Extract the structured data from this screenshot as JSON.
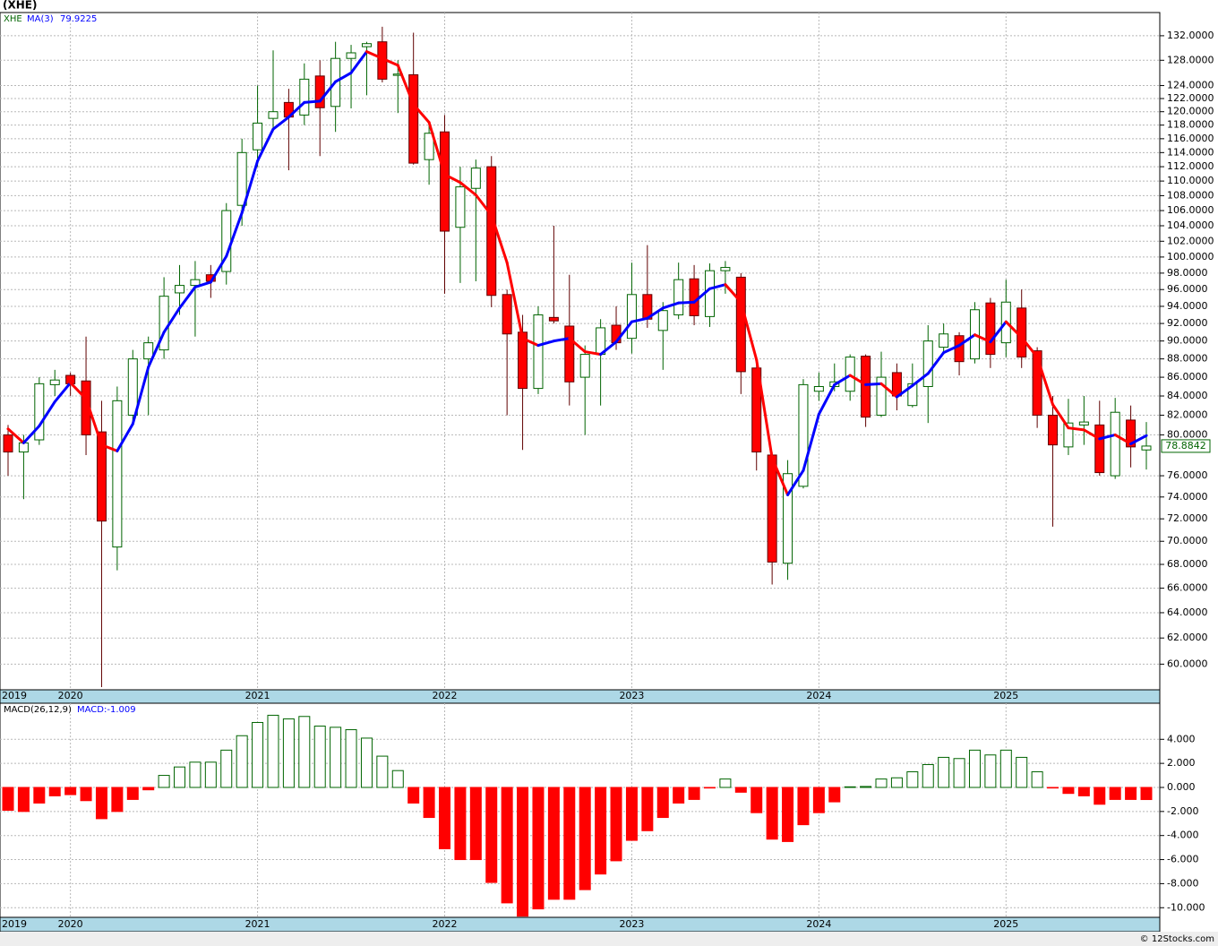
{
  "chart_data": [
    {
      "type": "candlestick",
      "title": "(XHE)",
      "symbol": "XHE",
      "log_scale": true,
      "grid": true,
      "up_color": "#006400",
      "down_color": "#ff0000",
      "categories": [
        "2019",
        null,
        null,
        null,
        "2020",
        null,
        null,
        null,
        null,
        null,
        null,
        null,
        null,
        null,
        null,
        null,
        "2021",
        null,
        null,
        null,
        null,
        null,
        null,
        null,
        null,
        null,
        null,
        null,
        "2022",
        null,
        null,
        null,
        null,
        null,
        null,
        null,
        null,
        null,
        null,
        null,
        "2023",
        null,
        null,
        null,
        null,
        null,
        null,
        null,
        null,
        null,
        null,
        null,
        "2024",
        null,
        null,
        null,
        null,
        null,
        null,
        null,
        null,
        null,
        null,
        null,
        "2025",
        null,
        null,
        null,
        null,
        null,
        null,
        null,
        null,
        null
      ],
      "open": [
        80,
        78.3,
        79.5,
        85.2,
        86.2,
        85.6,
        80.3,
        69.5,
        82,
        88,
        89,
        95.6,
        96.5,
        97.8,
        98.2,
        106.7,
        114.4,
        119,
        121.4,
        119.5,
        125.5,
        120.8,
        128.3,
        130.2,
        131,
        125.6,
        125.7,
        113,
        117,
        103.8,
        109,
        112,
        95.4,
        91,
        84.8,
        92.7,
        91.7,
        86,
        88.5,
        91.8,
        90.3,
        95.4,
        91.2,
        93,
        97.3,
        92.8,
        98.3,
        97.5,
        87,
        78,
        68.1,
        75,
        84.5,
        85,
        84.5,
        88.3,
        82,
        86.5,
        83,
        85,
        89.3,
        90.6,
        88,
        94.4,
        89.8,
        93.8,
        88.9,
        82,
        78.8,
        81,
        81,
        76,
        81.5,
        78.5
      ],
      "high": [
        81,
        80,
        86,
        86.8,
        86.5,
        90.5,
        83.5,
        85,
        89,
        90.5,
        97.5,
        99,
        99.5,
        99,
        107,
        116,
        124,
        129.6,
        123.5,
        127.5,
        128,
        131,
        130.5,
        131,
        133.5,
        128,
        132.5,
        118.5,
        119.5,
        112,
        113,
        113.5,
        96,
        93,
        94,
        104,
        97.8,
        89.5,
        92.5,
        94,
        99.3,
        101.5,
        94.5,
        99.3,
        99,
        99.2,
        99.5,
        98,
        88,
        78.3,
        77.5,
        85.8,
        86.5,
        87.5,
        88.5,
        88.5,
        88.8,
        87.5,
        87.5,
        91.8,
        92,
        91,
        94.5,
        95,
        97.2,
        96,
        89.3,
        84,
        83.7,
        84,
        83.5,
        83.8,
        83,
        81.3
      ],
      "low": [
        76,
        73.8,
        79,
        84,
        84,
        78,
        58.3,
        67.5,
        81,
        82,
        88,
        93,
        90.5,
        95,
        96.6,
        104,
        112,
        117,
        111.5,
        118,
        113.5,
        117,
        120.5,
        122.5,
        124.5,
        119.8,
        112.3,
        109.5,
        95.5,
        96.8,
        97,
        93.9,
        82,
        78.5,
        84.2,
        92,
        83,
        80,
        83,
        89,
        88.6,
        91.5,
        86.8,
        92.5,
        91.8,
        91.6,
        95.5,
        84.2,
        76.5,
        66.3,
        66.7,
        74.8,
        83.5,
        84.5,
        83.5,
        80.8,
        81.8,
        82.5,
        82.8,
        81.2,
        88.5,
        86.2,
        87.5,
        87,
        88.2,
        87,
        80.7,
        71.3,
        78,
        79,
        76,
        75.7,
        76.8,
        76.6
      ],
      "close": [
        78.3,
        79.2,
        85.3,
        85.7,
        85.3,
        80,
        71.8,
        83.5,
        88,
        89.8,
        95.2,
        96.5,
        97.2,
        97,
        106,
        114,
        118.3,
        120,
        119.2,
        125,
        120.6,
        128.3,
        129.2,
        130.7,
        125,
        125.8,
        112.5,
        116.8,
        103.3,
        109.2,
        111.8,
        95.3,
        90.8,
        84.8,
        93,
        92.3,
        85.5,
        88.5,
        91.5,
        89.8,
        95.4,
        92.5,
        93.5,
        97.2,
        92.9,
        98.3,
        98.7,
        86.6,
        78.3,
        68.2,
        76.2,
        85.2,
        85,
        85.5,
        88.2,
        81.8,
        86,
        84,
        85.3,
        90,
        90.8,
        87.7,
        93.6,
        88.5,
        94.5,
        88.2,
        82,
        79,
        81.2,
        81.3,
        76.3,
        82.3,
        78.8,
        78.8842
      ],
      "overlay": {
        "name": "MA(3)",
        "up_color": "#0000ff",
        "down_color": "#ff0000",
        "values": [
          80.6,
          79.2,
          80.9,
          83.4,
          85.4,
          83.7,
          79,
          78.4,
          81.1,
          87.1,
          91,
          93.8,
          96.3,
          96.9,
          100.1,
          105.7,
          112.8,
          117.4,
          119.2,
          121.4,
          121.6,
          124.6,
          126,
          129.4,
          128.3,
          127.2,
          121.1,
          118.4,
          110.9,
          109.8,
          108.1,
          105.4,
          99.3,
          90.3,
          89.5,
          90,
          90.3,
          88.8,
          88.5,
          89.9,
          92.2,
          92.6,
          93.8,
          94.4,
          94.5,
          96.1,
          96.6,
          94.5,
          87.9,
          77.7,
          74.2,
          76.5,
          82.1,
          85.2,
          86.2,
          85.2,
          85.3,
          83.9,
          85.1,
          86.4,
          88.7,
          89.5,
          90.7,
          89.9,
          92.2,
          90.4,
          88.2,
          83.1,
          80.7,
          80.5,
          79.6,
          80,
          79.1,
          79.9225
        ]
      },
      "ylim": [
        58.1,
        135.9
      ],
      "yticks": [
        {
          "value": 132,
          "label": "132.0000"
        },
        {
          "value": 128,
          "label": "128.0000"
        },
        {
          "value": 124,
          "label": "124.0000"
        },
        {
          "value": 122,
          "label": "122.0000"
        },
        {
          "value": 120,
          "label": "120.0000"
        },
        {
          "value": 118,
          "label": "118.0000"
        },
        {
          "value": 116,
          "label": "116.0000"
        },
        {
          "value": 114,
          "label": "114.0000"
        },
        {
          "value": 112,
          "label": "112.0000"
        },
        {
          "value": 110,
          "label": "110.0000"
        },
        {
          "value": 108,
          "label": "108.0000"
        },
        {
          "value": 106,
          "label": "106.0000"
        },
        {
          "value": 104,
          "label": "104.0000"
        },
        {
          "value": 102,
          "label": "102.0000"
        },
        {
          "value": 100,
          "label": "100.0000"
        },
        {
          "value": 98,
          "label": "98.0000"
        },
        {
          "value": 96,
          "label": "96.0000"
        },
        {
          "value": 94,
          "label": "94.0000"
        },
        {
          "value": 92,
          "label": "92.0000"
        },
        {
          "value": 90,
          "label": "90.0000"
        },
        {
          "value": 88,
          "label": "88.0000"
        },
        {
          "value": 86,
          "label": "86.0000"
        },
        {
          "value": 84,
          "label": "84.0000"
        },
        {
          "value": 82,
          "label": "82.0000"
        },
        {
          "value": 80,
          "label": "80.0000"
        },
        {
          "value": 76,
          "label": "76.0000"
        },
        {
          "value": 74,
          "label": "74.0000"
        },
        {
          "value": 72,
          "label": "72.0000"
        },
        {
          "value": 70,
          "label": "70.0000"
        },
        {
          "value": 68,
          "label": "68.0000"
        },
        {
          "value": 66,
          "label": "66.0000"
        },
        {
          "value": 64,
          "label": "64.0000"
        },
        {
          "value": 62,
          "label": "62.0000"
        },
        {
          "value": 60,
          "label": "60.0000"
        }
      ]
    },
    {
      "type": "bar",
      "title": "MACD(26,12,9)",
      "legend": "MACD:-1.009",
      "grid": true,
      "up_color": "#006400",
      "down_color": "#ff0000",
      "categories": [
        "2019",
        null,
        null,
        null,
        "2020",
        null,
        null,
        null,
        null,
        null,
        null,
        null,
        null,
        null,
        null,
        null,
        "2021",
        null,
        null,
        null,
        null,
        null,
        null,
        null,
        null,
        null,
        null,
        null,
        "2022",
        null,
        null,
        null,
        null,
        null,
        null,
        null,
        null,
        null,
        null,
        null,
        "2023",
        null,
        null,
        null,
        null,
        null,
        null,
        null,
        null,
        null,
        null,
        null,
        "2024",
        null,
        null,
        null,
        null,
        null,
        null,
        null,
        null,
        null,
        null,
        null,
        "2025",
        null,
        null,
        null,
        null,
        null,
        null,
        null,
        null,
        null
      ],
      "values": [
        -1.9,
        -2,
        -1.3,
        -0.7,
        -0.6,
        -1.1,
        -2.6,
        -2,
        -1,
        -0.2,
        1,
        1.7,
        2.1,
        2.1,
        3.1,
        4.3,
        5.4,
        6,
        5.7,
        5.9,
        5.1,
        5,
        4.8,
        4.1,
        2.6,
        1.4,
        -1.3,
        -2.5,
        -5.1,
        -6,
        -6,
        -7.9,
        -9.6,
        -10.7,
        -10.1,
        -9.3,
        -9.3,
        -8.5,
        -7.2,
        -6.1,
        -4.4,
        -3.6,
        -2.5,
        -1.3,
        -1,
        -0.05,
        0.7,
        -0.4,
        -2.1,
        -4.3,
        -4.5,
        -3.1,
        -2.1,
        -1.2,
        0.05,
        0.08,
        0.7,
        0.8,
        1.3,
        1.9,
        2.5,
        2.4,
        3.1,
        2.7,
        3.1,
        2.5,
        1.3,
        -0.05,
        -0.5,
        -0.7,
        -1.4,
        -1,
        -1,
        -1.009
      ],
      "ylim": [
        -10.8,
        7.0
      ],
      "yticks": [
        {
          "value": 4,
          "label": "4.000"
        },
        {
          "value": 2,
          "label": "2.000"
        },
        {
          "value": 0,
          "label": "0.000"
        },
        {
          "value": -2,
          "label": "-2.000"
        },
        {
          "value": -4,
          "label": "-4.000"
        },
        {
          "value": -6,
          "label": "-6.000"
        },
        {
          "value": -8,
          "label": "-8.000"
        },
        {
          "value": -10,
          "label": "-10.000"
        }
      ]
    }
  ],
  "footer": "© 12Stocks.com"
}
